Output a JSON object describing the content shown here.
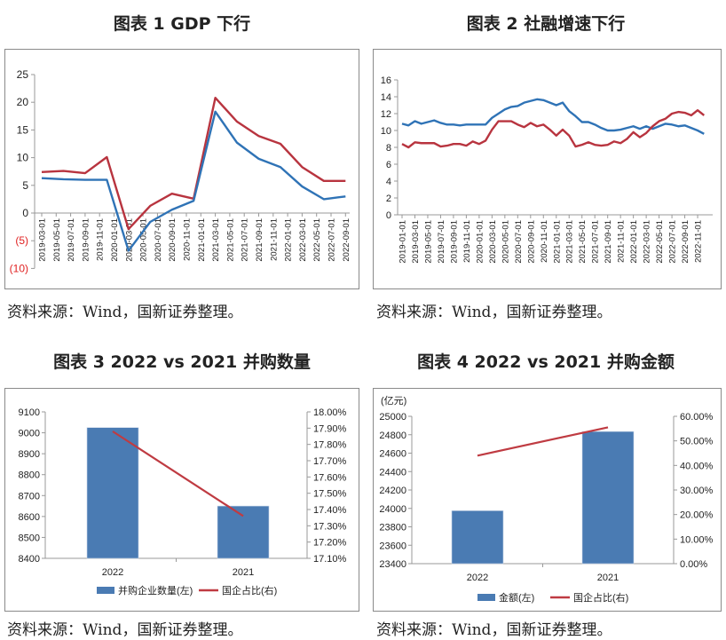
{
  "charts": [
    {
      "title": "图表 1  GDP 下行",
      "source": "资料来源：Wind，国新证券整理。",
      "chart_data": {
        "type": "line",
        "title": "图表 1  GDP 下行",
        "x_tick_labels": [
          "2019-03-01",
          "2019-05-01",
          "2019-07-01",
          "2019-09-01",
          "2019-11-01",
          "2020-01-01",
          "2020-03-01",
          "2020-05-01",
          "2020-07-01",
          "2020-09-01",
          "2020-11-01",
          "2021-01-01",
          "2021-03-01",
          "2021-05-01",
          "2021-07-01",
          "2021-09-01",
          "2021-11-01",
          "2022-01-01",
          "2022-03-01",
          "2022-05-01",
          "2022-07-01",
          "2022-09-01"
        ],
        "x": [
          "2019-03",
          "2019-06",
          "2019-09",
          "2019-12",
          "2020-03",
          "2020-06",
          "2020-09",
          "2020-12",
          "2021-03",
          "2021-06",
          "2021-09",
          "2021-12",
          "2022-03",
          "2022-06",
          "2022-09"
        ],
        "y_ticks": [
          25,
          20,
          15,
          10,
          5,
          0,
          -5,
          -10
        ],
        "y_tick_labels": [
          "25",
          "20",
          "15",
          "10",
          "5",
          "0",
          "(5)",
          "(10)"
        ],
        "ylim": [
          -10,
          25
        ],
        "series": [
          {
            "name": "series-red",
            "color": "#b8343f",
            "values": [
              7.4,
              7.6,
              7.2,
              10.1,
              -2.9,
              1.3,
              3.5,
              2.6,
              20.8,
              16.5,
              13.9,
              12.5,
              8.3,
              5.8,
              5.8
            ]
          },
          {
            "name": "series-blue",
            "color": "#2f73b6",
            "values": [
              6.3,
              6.1,
              6.0,
              6.0,
              -6.8,
              -1.6,
              0.6,
              2.2,
              18.3,
              12.7,
              9.8,
              8.3,
              4.8,
              2.5,
              3.0
            ]
          }
        ],
        "negative_label_color": "#e02020",
        "grid": false
      }
    },
    {
      "title": "图表 2  社融增速下行",
      "source": "资料来源：Wind，国新证券整理。",
      "chart_data": {
        "type": "line",
        "title": "图表 2  社融增速下行",
        "x_tick_labels": [
          "2019-01-01",
          "2019-03-01",
          "2019-05-01",
          "2019-07-01",
          "2019-09-01",
          "2019-11-01",
          "2020-01-01",
          "2020-03-01",
          "2020-05-01",
          "2020-07-01",
          "2020-09-01",
          "2020-11-01",
          "2021-01-01",
          "2021-03-01",
          "2021-05-01",
          "2021-07-01",
          "2021-09-01",
          "2021-11-01",
          "2022-01-01",
          "2022-03-01",
          "2022-05-01",
          "2022-07-01",
          "2022-09-01",
          "2022-11-01"
        ],
        "x_range": [
          "2019-01",
          "2022-12"
        ],
        "y_ticks": [
          16,
          14,
          12,
          10,
          8,
          6,
          4,
          2,
          0
        ],
        "y_tick_labels": [
          "16",
          "14",
          "12",
          "10",
          "8",
          "6",
          "4",
          "2",
          "0"
        ],
        "ylim": [
          0,
          16
        ],
        "series": [
          {
            "name": "series-blue",
            "color": "#2f73b6",
            "values": [
              10.8,
              10.6,
              11.1,
              10.8,
              11.0,
              11.2,
              10.9,
              10.7,
              10.7,
              10.6,
              10.7,
              10.7,
              10.7,
              10.7,
              11.5,
              12.0,
              12.5,
              12.8,
              12.9,
              13.3,
              13.5,
              13.7,
              13.6,
              13.3,
              13.0,
              13.3,
              12.3,
              11.7,
              11.0,
              11.0,
              10.7,
              10.3,
              10.0,
              10.0,
              10.1,
              10.3,
              10.5,
              10.2,
              10.5,
              10.2,
              10.5,
              10.8,
              10.7,
              10.5,
              10.6,
              10.3,
              10.0,
              9.6
            ]
          },
          {
            "name": "series-red",
            "color": "#b8343f",
            "values": [
              8.4,
              8.0,
              8.6,
              8.5,
              8.5,
              8.5,
              8.1,
              8.2,
              8.4,
              8.4,
              8.2,
              8.7,
              8.4,
              8.8,
              10.1,
              11.1,
              11.1,
              11.1,
              10.7,
              10.4,
              10.9,
              10.5,
              10.7,
              10.1,
              9.4,
              10.1,
              9.4,
              8.1,
              8.3,
              8.6,
              8.3,
              8.2,
              8.3,
              8.7,
              8.5,
              9.0,
              9.8,
              9.2,
              9.7,
              10.5,
              11.1,
              11.4,
              12.0,
              12.2,
              12.1,
              11.8,
              12.4,
              11.8
            ]
          }
        ],
        "grid": false
      }
    },
    {
      "title": "图表 3  2022 vs 2021 并购数量",
      "source": "资料来源：Wind，国新证券整理。",
      "chart_data": {
        "type": "bar",
        "title": "图表 3  2022 vs 2021 并购数量",
        "categories": [
          "2022",
          "2021"
        ],
        "unit_label": "",
        "left_axis": {
          "ylim": [
            8400,
            9100
          ],
          "ticks": [
            "9100",
            "9000",
            "8900",
            "8800",
            "8700",
            "8600",
            "8500",
            "8400"
          ]
        },
        "right_axis": {
          "ylim": [
            17.1,
            18.0
          ],
          "ticks": [
            "18.00%",
            "17.90%",
            "17.80%",
            "17.70%",
            "17.60%",
            "17.50%",
            "17.40%",
            "17.30%",
            "17.20%",
            "17.10%"
          ]
        },
        "series": [
          {
            "name": "并购企业数量(左)",
            "type": "bar",
            "axis": "left",
            "color": "#4a7bb3",
            "values": [
              9025,
              8650
            ]
          },
          {
            "name": "国企占比(右)",
            "type": "line",
            "axis": "right",
            "color": "#bf3b42",
            "values": [
              17.88,
              17.36
            ]
          }
        ],
        "legend_position": "bottom"
      }
    },
    {
      "title": "图表 4  2022 vs 2021 并购金额",
      "source": "资料来源：Wind，国新证券整理。",
      "chart_data": {
        "type": "bar",
        "title": "图表 4  2022 vs 2021 并购金额",
        "categories": [
          "2022",
          "2021"
        ],
        "unit_label": "(亿元)",
        "left_axis": {
          "ylim": [
            23400,
            25000
          ],
          "ticks": [
            "25000",
            "24800",
            "24600",
            "24400",
            "24200",
            "24000",
            "23800",
            "23600",
            "23400"
          ]
        },
        "right_axis": {
          "ylim": [
            0,
            60
          ],
          "ticks": [
            "60.00%",
            "50.00%",
            "40.00%",
            "30.00%",
            "20.00%",
            "10.00%",
            "0.00%"
          ]
        },
        "series": [
          {
            "name": "金额(左)",
            "type": "bar",
            "axis": "left",
            "color": "#4a7bb3",
            "values": [
              23975,
              24835
            ]
          },
          {
            "name": "国企占比(右)",
            "type": "line",
            "axis": "right",
            "color": "#bf3b42",
            "values": [
              44.0,
              55.5
            ]
          }
        ],
        "legend_position": "bottom"
      }
    }
  ]
}
